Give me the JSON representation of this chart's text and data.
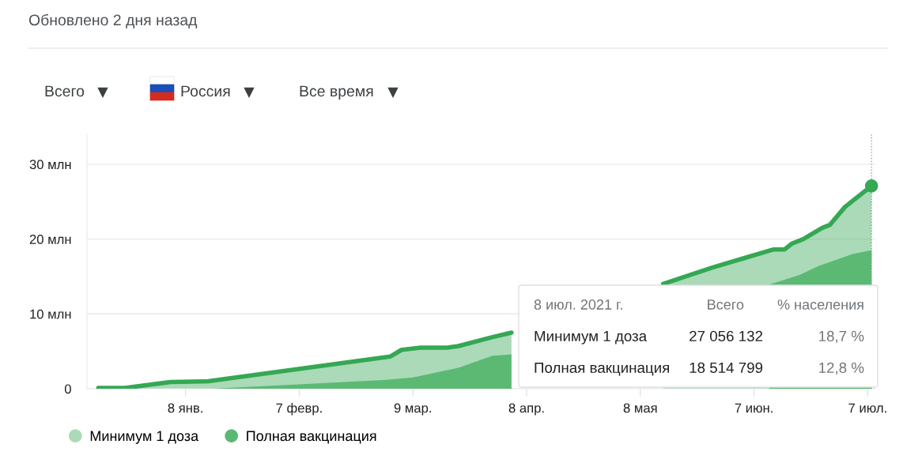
{
  "chart_data": {
    "type": "area",
    "subtitle": "Обновлено 2 дня назад",
    "series": [
      {
        "name": "Минимум 1 доза",
        "color": "#34a853",
        "x": [
          "2020-12-16",
          "2020-12-23",
          "2021-01-04",
          "2021-01-14",
          "2021-03-03",
          "2021-03-06",
          "2021-03-11",
          "2021-03-18",
          "2021-03-21",
          "2021-03-30",
          "2021-04-04",
          "2021-04-05",
          "2021-05-14",
          "2021-05-27",
          "2021-06-04",
          "2021-06-12",
          "2021-06-15",
          "2021-06-17",
          "2021-06-20",
          "2021-06-25",
          "2021-06-27",
          "2021-07-01",
          "2021-07-03",
          "2021-07-08"
        ],
        "values": [
          0.1,
          0.1,
          0.9,
          1.0,
          4.3,
          5.2,
          5.5,
          5.5,
          5.7,
          6.9,
          7.5,
          null,
          14.0,
          16.2,
          17.4,
          18.6,
          18.6,
          19.4,
          20.0,
          21.5,
          21.9,
          24.3,
          25.1,
          27.1
        ]
      },
      {
        "name": "Полная вакцинация",
        "color": "#5bb974",
        "x": [
          "2020-12-16",
          "2021-01-15",
          "2021-02-12",
          "2021-03-02",
          "2021-03-09",
          "2021-03-21",
          "2021-03-30",
          "2021-04-04",
          "2021-04-05",
          "2021-06-11",
          "2021-06-19",
          "2021-06-24",
          "2021-07-03",
          "2021-07-08"
        ],
        "values": [
          0,
          0,
          0.7,
          1.2,
          1.5,
          2.8,
          4.4,
          4.6,
          null,
          13.9,
          15.2,
          16.4,
          18.0,
          18.5
        ]
      }
    ],
    "xlim": [
      "2020-12-13",
      "2021-07-09"
    ],
    "xticks": [
      {
        "value": "2021-01-08",
        "label": "8 янв."
      },
      {
        "value": "2021-02-07",
        "label": "7 февр."
      },
      {
        "value": "2021-03-09",
        "label": "9 мар."
      },
      {
        "value": "2021-04-08",
        "label": "8 апр."
      },
      {
        "value": "2021-05-08",
        "label": "8 мая"
      },
      {
        "value": "2021-06-07",
        "label": "7 июн."
      },
      {
        "value": "2021-07-07",
        "label": "7 июл."
      }
    ],
    "ylim": [
      0,
      34
    ],
    "yticks": [
      {
        "value": 0,
        "label": "0"
      },
      {
        "value": 10,
        "label": "10 млн"
      },
      {
        "value": 20,
        "label": "20 млн"
      },
      {
        "value": 30,
        "label": "30 млн"
      }
    ],
    "ref_lines": [
      {
        "axis": "x",
        "value": "2021-07-08",
        "color": "#9aa0a6",
        "line_style": "dotted"
      }
    ],
    "annotations": [
      "Всего",
      "Россия",
      "Все время",
      "8 июл. 2021 г.",
      "Всего",
      "% населения",
      "Минимум 1 доза",
      "27 056 132",
      "18,7 %",
      "Полная вакцинация",
      "18 514 799",
      "12,8 %"
    ],
    "grid": "y",
    "legend": "bottom"
  }
}
